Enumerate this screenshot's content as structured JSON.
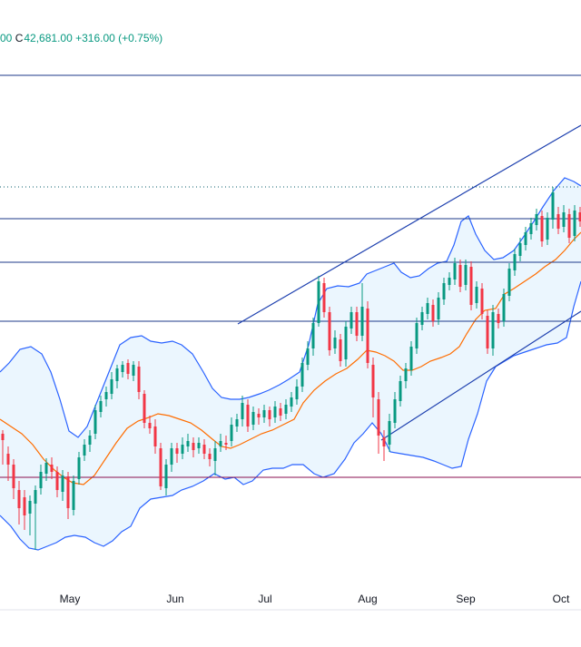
{
  "header": {
    "ohlc_prefix": "00",
    "close_label": "C",
    "close_value": "42,681.00",
    "change": "+316.00 (+0.75%)"
  },
  "colors": {
    "up": "#089981",
    "down": "#f23645",
    "band_line": "#2962ff",
    "band_fill": "#e3f2fd",
    "basis": "#ff6d00",
    "level_line": "#1e3a8a",
    "support": "#880e4f",
    "channel": "#1e40af"
  },
  "chart_data": {
    "type": "candlestick",
    "x_ticks": [
      "May",
      "Jun",
      "Jul",
      "Aug",
      "Sep",
      "Oct"
    ],
    "horizontal_levels": [
      "solid",
      "dotted",
      "solid",
      "solid",
      "solid"
    ],
    "support_level": "solid",
    "indicators": [
      "Bollinger Bands",
      "Basis (SMA)"
    ],
    "trend_channels": 2
  }
}
